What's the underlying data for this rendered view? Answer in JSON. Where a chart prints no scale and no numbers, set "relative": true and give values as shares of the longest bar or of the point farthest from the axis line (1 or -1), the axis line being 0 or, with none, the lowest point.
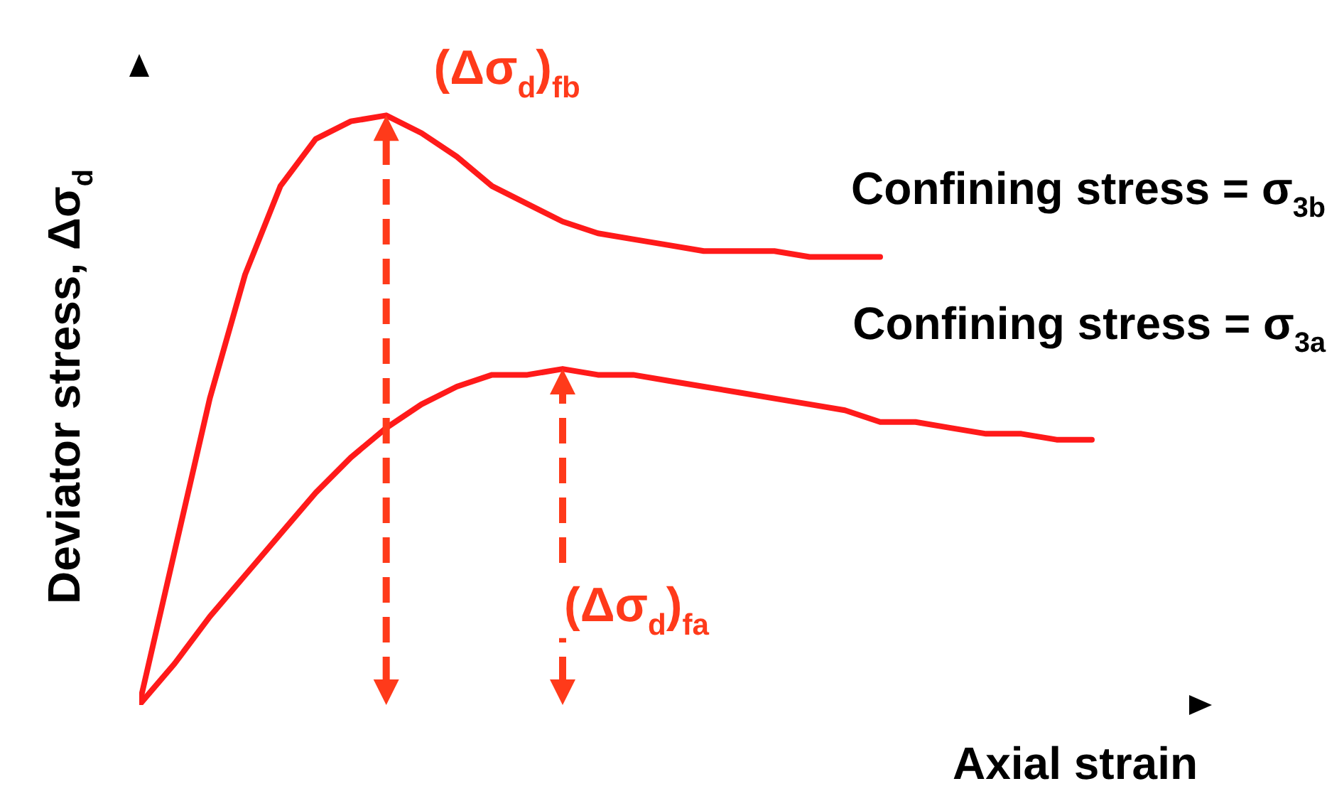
{
  "chart_data": {
    "type": "line",
    "relative": true,
    "xlabel": "Axial strain",
    "ylabel": "Deviator stress, Δσ$_{d}$",
    "marker": "none",
    "line_style": "solid",
    "categories": [
      null,
      null,
      null,
      null,
      null,
      null,
      null,
      null,
      null,
      null,
      null,
      null,
      null,
      null,
      null,
      null,
      null,
      null,
      null,
      null,
      null,
      null,
      null,
      null,
      null,
      null,
      null,
      null,
      null,
      null,
      null
    ],
    "series": [
      {
        "name": "Confining stress = σ$_{3b}$",
        "color": "#ff1a1a",
        "values": [
          0,
          0.26,
          0.52,
          0.73,
          0.88,
          0.96,
          0.99,
          1,
          0.97,
          0.93,
          0.88,
          0.85,
          0.82,
          0.8,
          0.79,
          0.78,
          0.77,
          0.77,
          0.77,
          0.76,
          0.76,
          0.76,
          null,
          null,
          null,
          null,
          null,
          null,
          null,
          null,
          null
        ]
      },
      {
        "name": "Confining stress = σ$_{3a}$",
        "color": "#ff1a1a",
        "values": [
          0,
          0.07,
          0.15,
          0.22,
          0.29,
          0.36,
          0.42,
          0.47,
          0.51,
          0.54,
          0.56,
          0.56,
          0.57,
          0.56,
          0.56,
          0.55,
          0.54,
          0.53,
          0.52,
          0.51,
          0.5,
          0.48,
          0.48,
          0.47,
          0.46,
          0.46,
          0.45,
          0.45,
          null,
          null,
          null
        ]
      }
    ],
    "annotations": [
      "(Δσ$_{d}$)$_{fb}$",
      "(Δσ$_{d}$)$_{fa}$"
    ]
  }
}
